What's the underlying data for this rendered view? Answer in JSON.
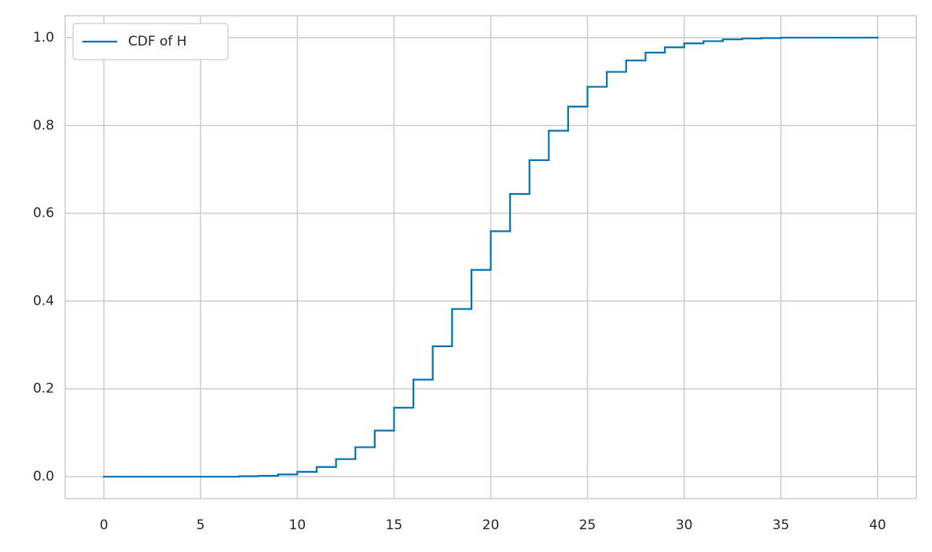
{
  "chart_data": {
    "type": "step",
    "x": [
      0,
      1,
      2,
      3,
      4,
      5,
      6,
      7,
      8,
      9,
      10,
      11,
      12,
      13,
      14,
      15,
      16,
      17,
      18,
      19,
      20,
      21,
      22,
      23,
      24,
      25,
      26,
      27,
      28,
      29,
      30,
      31,
      32,
      33,
      34,
      35,
      36,
      37,
      38,
      39,
      40
    ],
    "series": [
      {
        "name": "CDF of H",
        "color": "#0173b2",
        "values": [
          0,
          0,
          0,
          0,
          0,
          0,
          0,
          0.001,
          0.002,
          0.005,
          0.011,
          0.022,
          0.04,
          0.067,
          0.105,
          0.157,
          0.221,
          0.297,
          0.382,
          0.471,
          0.559,
          0.644,
          0.721,
          0.788,
          0.843,
          0.888,
          0.922,
          0.948,
          0.966,
          0.978,
          0.987,
          0.992,
          0.996,
          0.998,
          0.999,
          1.0,
          1.0,
          1.0,
          1.0,
          1.0,
          1.0
        ]
      }
    ],
    "xlim": [
      -2,
      42
    ],
    "ylim": [
      -0.05,
      1.05
    ],
    "xticks": [
      0,
      5,
      10,
      15,
      20,
      25,
      30,
      35,
      40
    ],
    "yticks": [
      {
        "value": 0,
        "label": "0.0"
      },
      {
        "value": 0.2,
        "label": "0.2"
      },
      {
        "value": 0.4,
        "label": "0.4"
      },
      {
        "value": 0.6,
        "label": "0.6"
      },
      {
        "value": 0.8,
        "label": "0.8"
      },
      {
        "value": 1.0,
        "label": "1.0"
      }
    ],
    "grid": true,
    "legend": "upper left"
  }
}
